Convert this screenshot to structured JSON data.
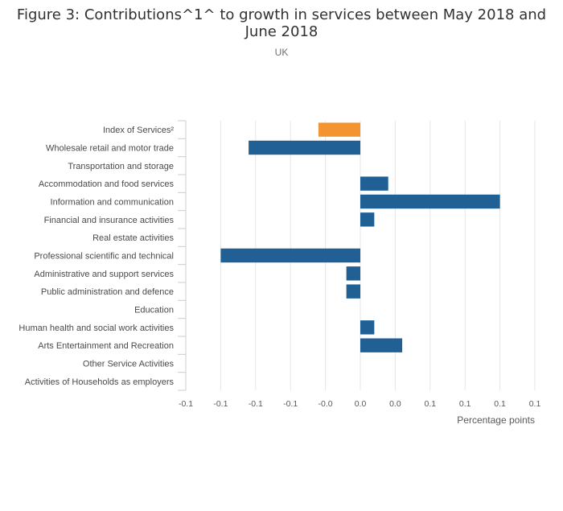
{
  "title_line1": "Figure 3: Contributions^1^ to growth in services between May 2018 and",
  "title_line2": "June 2018",
  "subtitle": "UK",
  "colors": {
    "highlight": "#f39431",
    "bar": "#206095",
    "grid": "#e6e6e6",
    "axis": "#cccccc"
  },
  "chart_data": {
    "type": "bar",
    "orientation": "horizontal",
    "categories": [
      "Index of Services²",
      "Wholesale retail and motor trade",
      "Transportation and storage",
      "Accommodation and food services",
      "Information and communication",
      "Financial and insurance activities",
      "Real estate activities",
      "Professional scientific and technical",
      "Administrative and support services",
      "Public administration and defence",
      "Education",
      "Human health and social work activities",
      "Arts Entertainment and Recreation",
      "Other Service Activities",
      "Activities of Households as employers"
    ],
    "values": [
      -0.03,
      -0.08,
      0.0,
      0.02,
      0.1,
      0.01,
      0.0,
      -0.1,
      -0.01,
      -0.01,
      0.0,
      0.01,
      0.03,
      0.0,
      0.0
    ],
    "highlight_index": 0,
    "x_ticks": [
      -0.125,
      -0.1,
      -0.075,
      -0.05,
      -0.025,
      0.0,
      0.025,
      0.05,
      0.075,
      0.1,
      0.125
    ],
    "x_tick_labels": [
      "-0.1",
      "-0.1",
      "-0.1",
      "-0.1",
      "-0.0",
      "0.0",
      "0.0",
      "0.1",
      "0.1",
      "0.1",
      "0.1"
    ],
    "xlim": [
      -0.125,
      0.125
    ],
    "xlabel": "Percentage points",
    "ylabel": "",
    "grid": true
  }
}
